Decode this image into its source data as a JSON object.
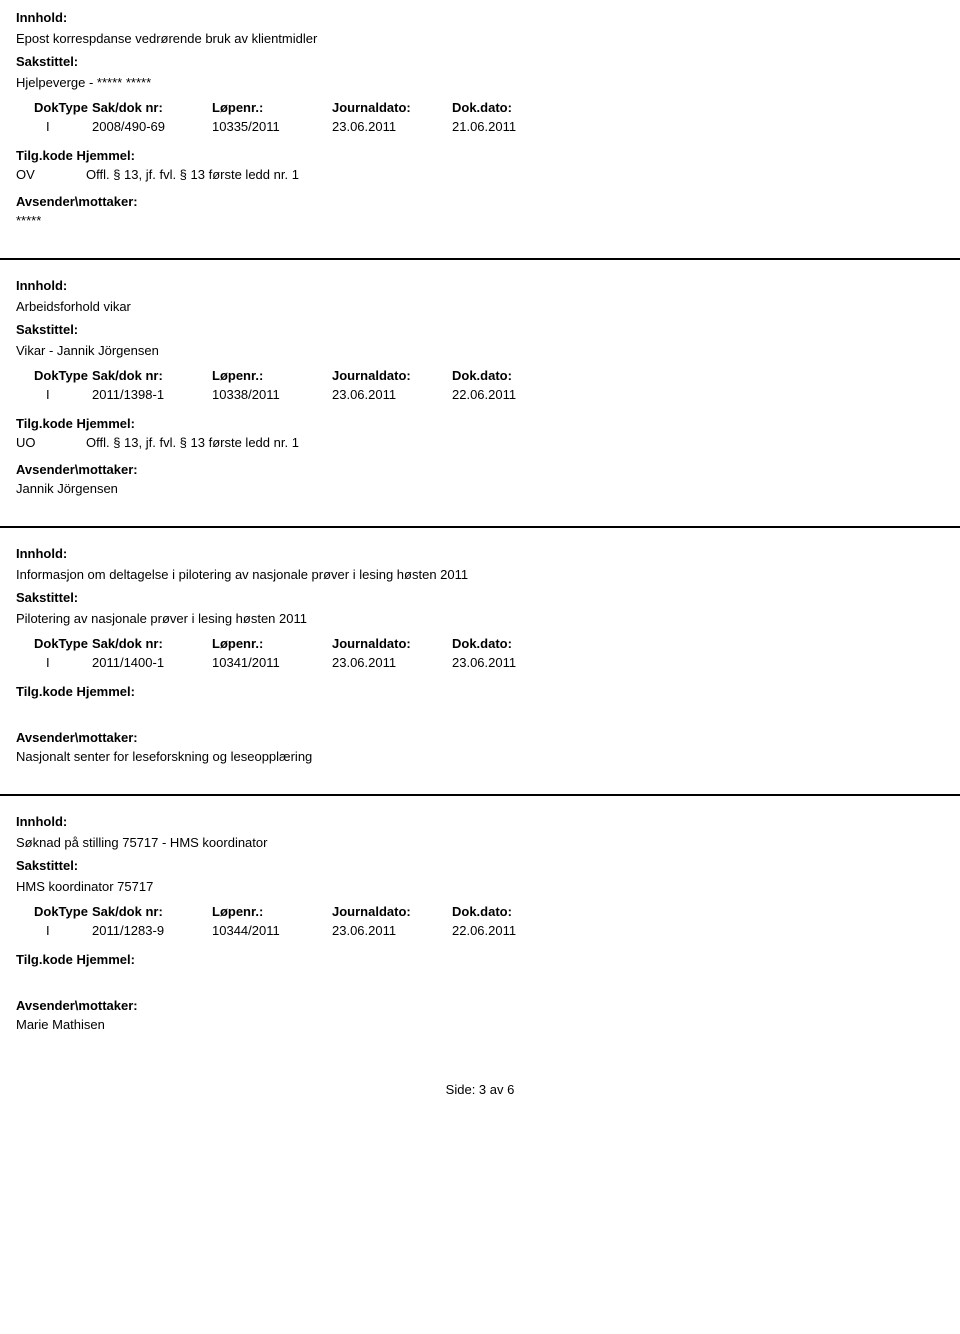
{
  "labels": {
    "innhold": "Innhold:",
    "sakstittel": "Sakstittel:",
    "doktype": "DokType",
    "sakdoknr": "Sak/dok nr:",
    "lopenr": "Løpenr.:",
    "journaldato": "Journaldato:",
    "dokdato": "Dok.dato:",
    "tilgkode": "Tilg.kode",
    "hjemmel": "Hjemmel:",
    "avsender": "Avsender\\mottaker:"
  },
  "records": [
    {
      "innhold": "Epost korrespdanse vedrørende bruk av klientmidler",
      "sakstittel": "Hjelpeverge - ***** *****",
      "doktype": "I",
      "sakdoknr": "2008/490-69",
      "lopenr": "10335/2011",
      "journaldato": "23.06.2011",
      "dokdato": "21.06.2011",
      "tilgkode": "OV",
      "hjemmel": "Offl. § 13, jf. fvl. § 13 første ledd nr. 1",
      "avsender": "*****"
    },
    {
      "innhold": "Arbeidsforhold vikar",
      "sakstittel": "Vikar - Jannik Jörgensen",
      "doktype": "I",
      "sakdoknr": "2011/1398-1",
      "lopenr": "10338/2011",
      "journaldato": "23.06.2011",
      "dokdato": "22.06.2011",
      "tilgkode": "UO",
      "hjemmel": "Offl. § 13, jf. fvl. § 13 første ledd nr. 1",
      "avsender": "Jannik Jörgensen"
    },
    {
      "innhold": "Informasjon om deltagelse i pilotering av nasjonale prøver i lesing høsten 2011",
      "sakstittel": "Pilotering av nasjonale prøver i lesing høsten 2011",
      "doktype": "I",
      "sakdoknr": "2011/1400-1",
      "lopenr": "10341/2011",
      "journaldato": "23.06.2011",
      "dokdato": "23.06.2011",
      "tilgkode": "",
      "hjemmel": "",
      "avsender": "Nasjonalt senter for leseforskning og leseopplæring"
    },
    {
      "innhold": "Søknad på stilling 75717 - HMS koordinator",
      "sakstittel": "HMS koordinator 75717",
      "doktype": "I",
      "sakdoknr": "2011/1283-9",
      "lopenr": "10344/2011",
      "journaldato": "23.06.2011",
      "dokdato": "22.06.2011",
      "tilgkode": "",
      "hjemmel": "",
      "avsender": "Marie Mathisen"
    }
  ],
  "footer": "Side: 3 av 6"
}
